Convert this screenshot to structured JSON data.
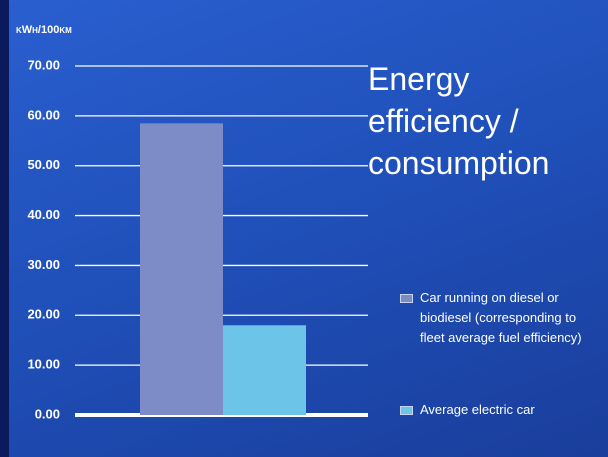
{
  "chart_data": {
    "type": "bar",
    "title": "Energy efficiency / consumption",
    "y_label": "kWh/100km",
    "series": [
      {
        "name": "Car running on diesel or biodiesel (corresponding to fleet average fuel efficiency)",
        "color": "#7d8cc6",
        "values": [
          58.5
        ]
      },
      {
        "name": "Average electric car",
        "color": "#6cc4e8",
        "values": [
          18
        ]
      }
    ],
    "ylim": [
      0,
      70
    ],
    "yticks": [
      {
        "value": 0,
        "label": "0.00"
      },
      {
        "value": 10,
        "label": "10.00"
      },
      {
        "value": 20,
        "label": "20.00"
      },
      {
        "value": 30,
        "label": "30.00"
      },
      {
        "value": 40,
        "label": "40.00"
      },
      {
        "value": 50,
        "label": "50.00"
      },
      {
        "value": 60,
        "label": "60.00"
      },
      {
        "value": 70,
        "label": "70.00"
      }
    ],
    "grid": true
  }
}
